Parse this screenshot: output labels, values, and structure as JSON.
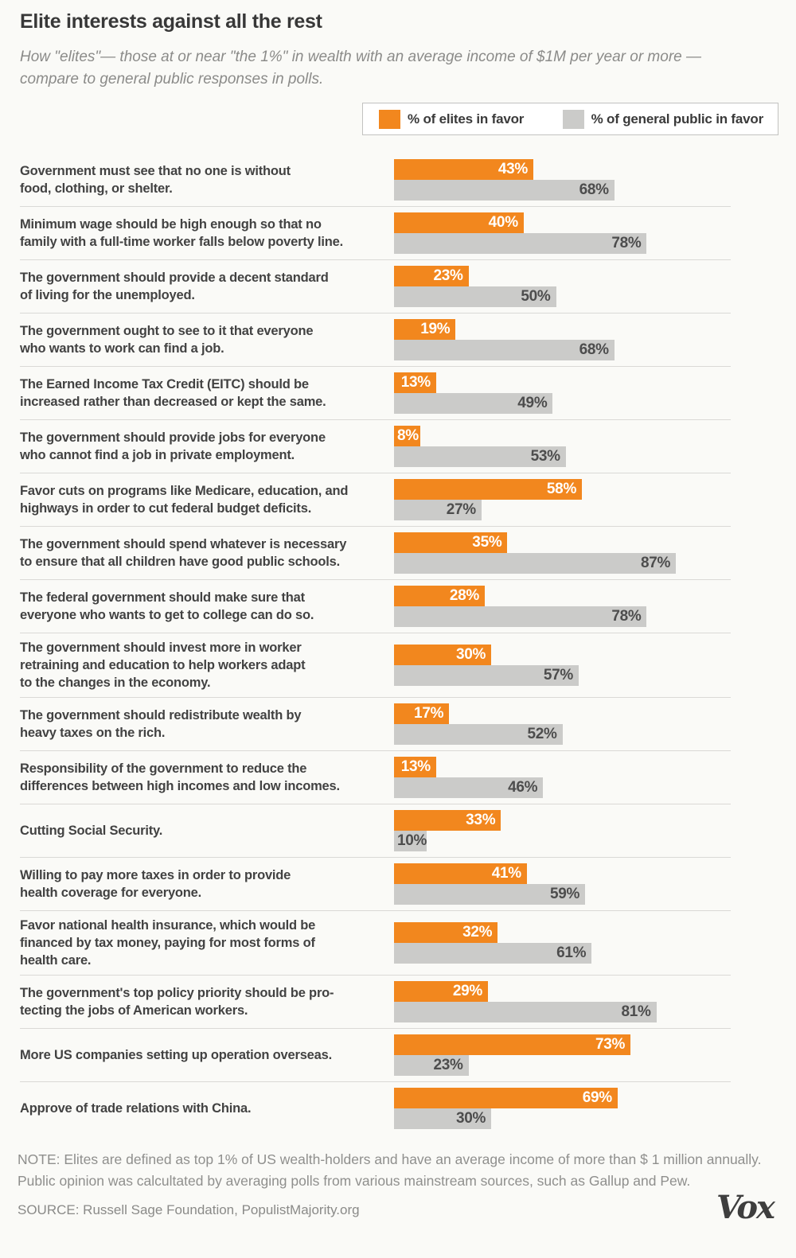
{
  "header": {
    "title": "Elite interests against all the rest",
    "subtitle": "How \"elites\"— those at or near \"the 1%\" in wealth with an average income of $1M per year or more —\ncompare to general public responses in polls."
  },
  "legend": {
    "elites_label": "% of elites in favor",
    "public_label": "% of general public in favor"
  },
  "colors": {
    "elites_orange": "#F2871E",
    "public_gray": "#CBCBC9",
    "bar_value_on_gray": "#4D4D4D",
    "bar_value_on_orange": "#FFFFFF",
    "background": "#FAFAF7"
  },
  "chart_data": {
    "type": "bar",
    "orientation": "horizontal",
    "value_unit": "%",
    "xlim": [
      0,
      100
    ],
    "grid": false,
    "legend_position": "top-right",
    "categories": [
      "Government must see that no one is without\nfood, clothing, or shelter.",
      "Minimum wage should be high enough so that no\nfamily with a full-time worker falls below poverty line.",
      "The government should provide a decent standard\nof living for the unemployed.",
      "The government ought to see to it that everyone\nwho wants to work can find a job.",
      "The Earned Income Tax Credit (EITC) should be\nincreased rather than decreased or kept the same.",
      "The government should provide jobs for everyone\nwho cannot find a job in private employment.",
      "Favor cuts on programs like Medicare, education, and\nhighways in order to cut federal budget deficits.",
      "The government should spend whatever is necessary\nto ensure that all children have good public schools.",
      "The federal government should make sure that\neveryone who wants to get to college can do so.",
      "The government should invest more in worker\nretraining and education to help workers adapt\nto the changes in the economy.",
      "The government should redistribute wealth by\nheavy taxes on the rich.",
      "Responsibility of the government to reduce the\ndifferences between high incomes and  low incomes.",
      "Cutting Social Security.",
      "Willing to pay more taxes in order to provide\nhealth coverage for everyone.",
      "Favor national health insurance, which would be\nfinanced by tax money, paying for most forms of\nhealth care.",
      "The government's top policy priority should be pro-\ntecting the jobs of American workers.",
      "More US companies setting up operation overseas.",
      "Approve of trade relations with China."
    ],
    "series": [
      {
        "name": "% of elites in favor",
        "color": "#F2871E",
        "values": [
          43,
          40,
          23,
          19,
          13,
          8,
          58,
          35,
          28,
          30,
          17,
          13,
          33,
          41,
          32,
          29,
          73,
          69
        ]
      },
      {
        "name": "% of general public in favor",
        "color": "#CBCBC9",
        "values": [
          68,
          78,
          50,
          68,
          49,
          53,
          27,
          87,
          78,
          57,
          52,
          46,
          10,
          59,
          61,
          81,
          23,
          30
        ]
      }
    ]
  },
  "footer": {
    "note": "NOTE: Elites are defined as top 1% of US wealth-holders and have an average income of more than $ 1 million annually.\nPublic opinion was calcultated by averaging polls from various mainstream sources, such as Gallup and Pew.",
    "source": "SOURCE: Russell Sage Foundation, PopulistMajority.org",
    "brand": "Vox"
  }
}
